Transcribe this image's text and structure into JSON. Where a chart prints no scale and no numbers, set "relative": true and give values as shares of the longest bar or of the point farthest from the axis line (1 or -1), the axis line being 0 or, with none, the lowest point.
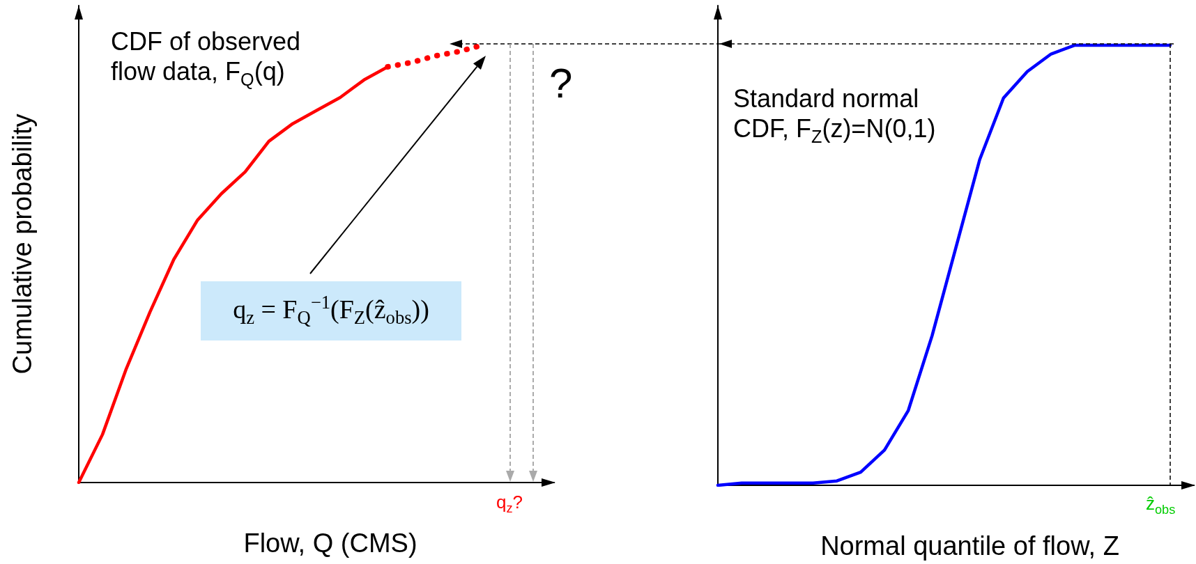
{
  "chart_data": [
    {
      "type": "line",
      "relative": true,
      "marker": "none",
      "xlabel": "Flow, Q (CMS)",
      "ylabel": "Cumulative probability",
      "categories": [
        null,
        null,
        null,
        null,
        null,
        null,
        null,
        null,
        null,
        null,
        null,
        null,
        null,
        null,
        null,
        null,
        null,
        null,
        null,
        null,
        null
      ],
      "series": [
        {
          "color": "#ff0000",
          "values": [
            0,
            0.11,
            0.26,
            0.39,
            0.51,
            0.6,
            0.66,
            0.71,
            0.78,
            0.82,
            0.85,
            0.88,
            0.92,
            0.95,
            null,
            null,
            null,
            null,
            null,
            null,
            null
          ]
        },
        {
          "color": "#ff0000",
          "line_style": "dotted",
          "values": [
            null,
            null,
            null,
            null,
            null,
            null,
            null,
            null,
            null,
            null,
            null,
            null,
            null,
            0.95,
            0.96,
            0.975,
            0.985,
            1,
            null,
            null,
            null
          ]
        }
      ],
      "annotations": [
        "CDF of observed flow data, F$_{Q}$(q)",
        "q$_{z}$ = F$_{Q}$$^{−1}$(F$_{Z}$(ẑ$_{obs}$))",
        "?",
        "q$_{z}$?"
      ]
    },
    {
      "type": "line",
      "relative": true,
      "marker": "none",
      "xlabel": "Normal quantile of flow, Z",
      "categories": [
        null,
        null,
        null,
        null,
        null,
        null,
        null,
        null,
        null,
        null,
        null,
        null,
        null,
        null,
        null,
        null,
        null,
        null,
        null,
        null,
        null
      ],
      "series": [
        {
          "color": "#0000ff",
          "values": [
            0,
            0.005,
            0.005,
            0.005,
            0.005,
            0.01,
            0.03,
            0.08,
            0.17,
            0.34,
            0.54,
            0.74,
            0.88,
            0.94,
            0.98,
            1,
            1,
            1,
            1,
            1,
            null
          ]
        }
      ],
      "annotations": [
        "Standard normal CDF, F$_{Z}$(z)=N(0,1)",
        "ẑ$_{obs}$"
      ]
    }
  ]
}
